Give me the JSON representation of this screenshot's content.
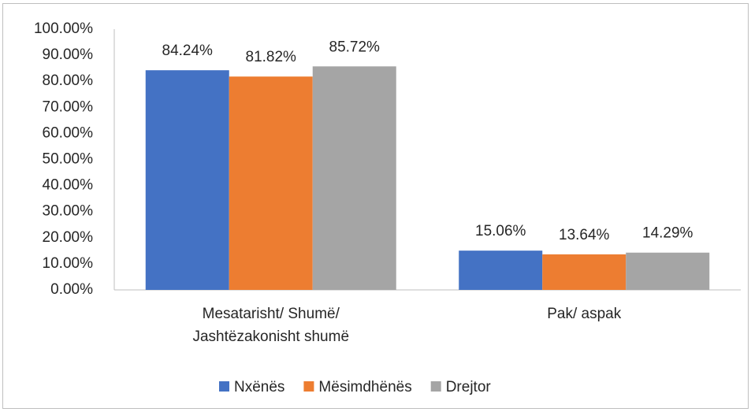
{
  "chart_data": {
    "type": "bar",
    "categories": [
      "Mesatarisht/ Shumë/ Jashtëzakonisht shumë",
      "Pak/ aspak"
    ],
    "series": [
      {
        "name": "Nxënës",
        "color": "#4472c4",
        "values": [
          84.24,
          15.06
        ],
        "value_labels": [
          "84.24%",
          "15.06%"
        ]
      },
      {
        "name": "Mësimdhënës",
        "color": "#ed7d31",
        "values": [
          81.82,
          13.64
        ],
        "value_labels": [
          "81.82%",
          "13.64%"
        ]
      },
      {
        "name": "Drejtor",
        "color": "#a5a5a5",
        "values": [
          85.72,
          14.29
        ],
        "value_labels": [
          "85.72%",
          "14.29%"
        ]
      }
    ],
    "ylim": [
      0,
      100
    ],
    "yticks": [
      {
        "value": 0,
        "label": "0.00%"
      },
      {
        "value": 10,
        "label": "10.00%"
      },
      {
        "value": 20,
        "label": "20.00%"
      },
      {
        "value": 30,
        "label": "30.00%"
      },
      {
        "value": 40,
        "label": "40.00%"
      },
      {
        "value": 50,
        "label": "50.00%"
      },
      {
        "value": 60,
        "label": "60.00%"
      },
      {
        "value": 70,
        "label": "70.00%"
      },
      {
        "value": 80,
        "label": "80.00%"
      },
      {
        "value": 90,
        "label": "90.00%"
      },
      {
        "value": 100,
        "label": "100.00%"
      }
    ],
    "grid": false,
    "legend": "bottom"
  }
}
